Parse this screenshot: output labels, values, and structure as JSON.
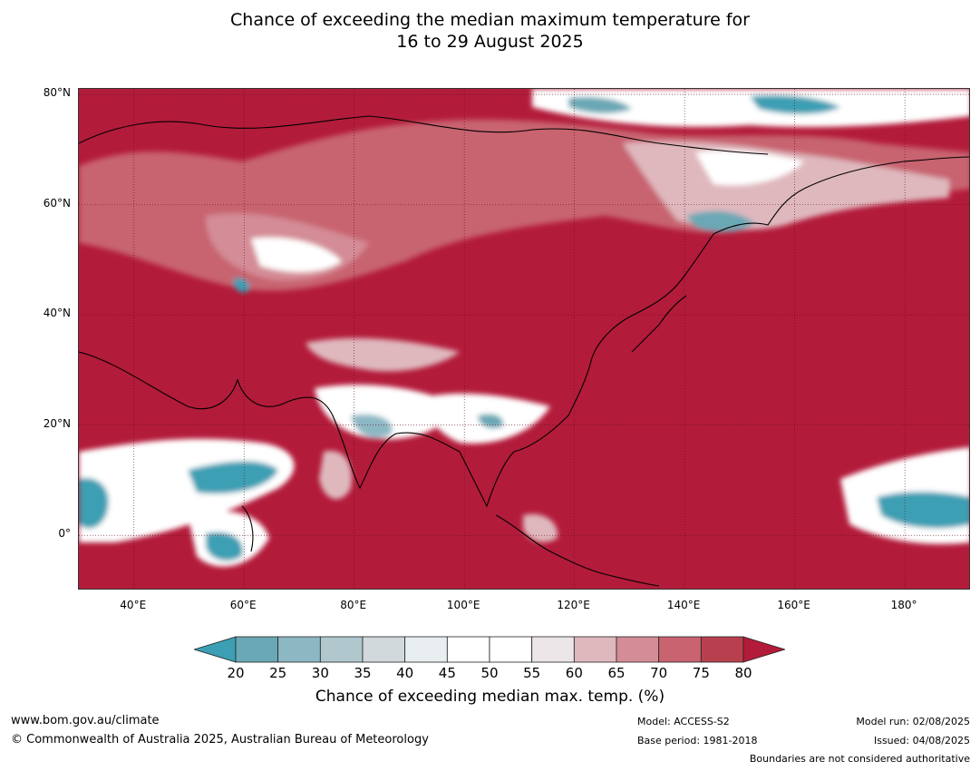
{
  "title_line1": "Chance of exceeding the median maximum temperature for",
  "title_line2": "16 to 29 August 2025",
  "map": {
    "extent_lon": [
      30,
      192
    ],
    "extent_lat": [
      -10,
      81
    ],
    "background_color": "#b31b3a",
    "lat_ticks": [
      {
        "label": "80°N",
        "value": 80
      },
      {
        "label": "60°N",
        "value": 60
      },
      {
        "label": "40°N",
        "value": 40
      },
      {
        "label": "20°N",
        "value": 20
      },
      {
        "label": "0°",
        "value": 0
      }
    ],
    "lon_ticks": [
      {
        "label": "40°E",
        "value": 40
      },
      {
        "label": "60°E",
        "value": 60
      },
      {
        "label": "80°E",
        "value": 80
      },
      {
        "label": "100°E",
        "value": 100
      },
      {
        "label": "120°E",
        "value": 120
      },
      {
        "label": "140°E",
        "value": 140
      },
      {
        "label": "160°E",
        "value": 160
      },
      {
        "label": "180°",
        "value": 180
      }
    ]
  },
  "colorbar": {
    "ticks": [
      "20",
      "25",
      "30",
      "35",
      "40",
      "45",
      "50",
      "55",
      "60",
      "65",
      "70",
      "75",
      "80"
    ],
    "colors": [
      "#3c9fb3",
      "#6aa8b5",
      "#8cb8c4",
      "#afc7cd",
      "#d2d9dc",
      "#e9eef0",
      "#ffffff",
      "#ffffff",
      "#ece6e8",
      "#dfb8be",
      "#d48c96",
      "#c8636f",
      "#b8404e",
      "#b31b3a"
    ],
    "label": "Chance of exceeding median max. temp. (%)"
  },
  "footer": {
    "website": "www.bom.gov.au/climate",
    "copyright": "© Commonwealth of Australia 2025, Australian Bureau of Meteorology",
    "model": "Model: ACCESS-S2",
    "base_period": "Base period: 1981-2018",
    "model_run": "Model run: 02/08/2025",
    "issued": "Issued: 04/08/2025",
    "disclaimer": "Boundaries are not considered authoritative"
  }
}
